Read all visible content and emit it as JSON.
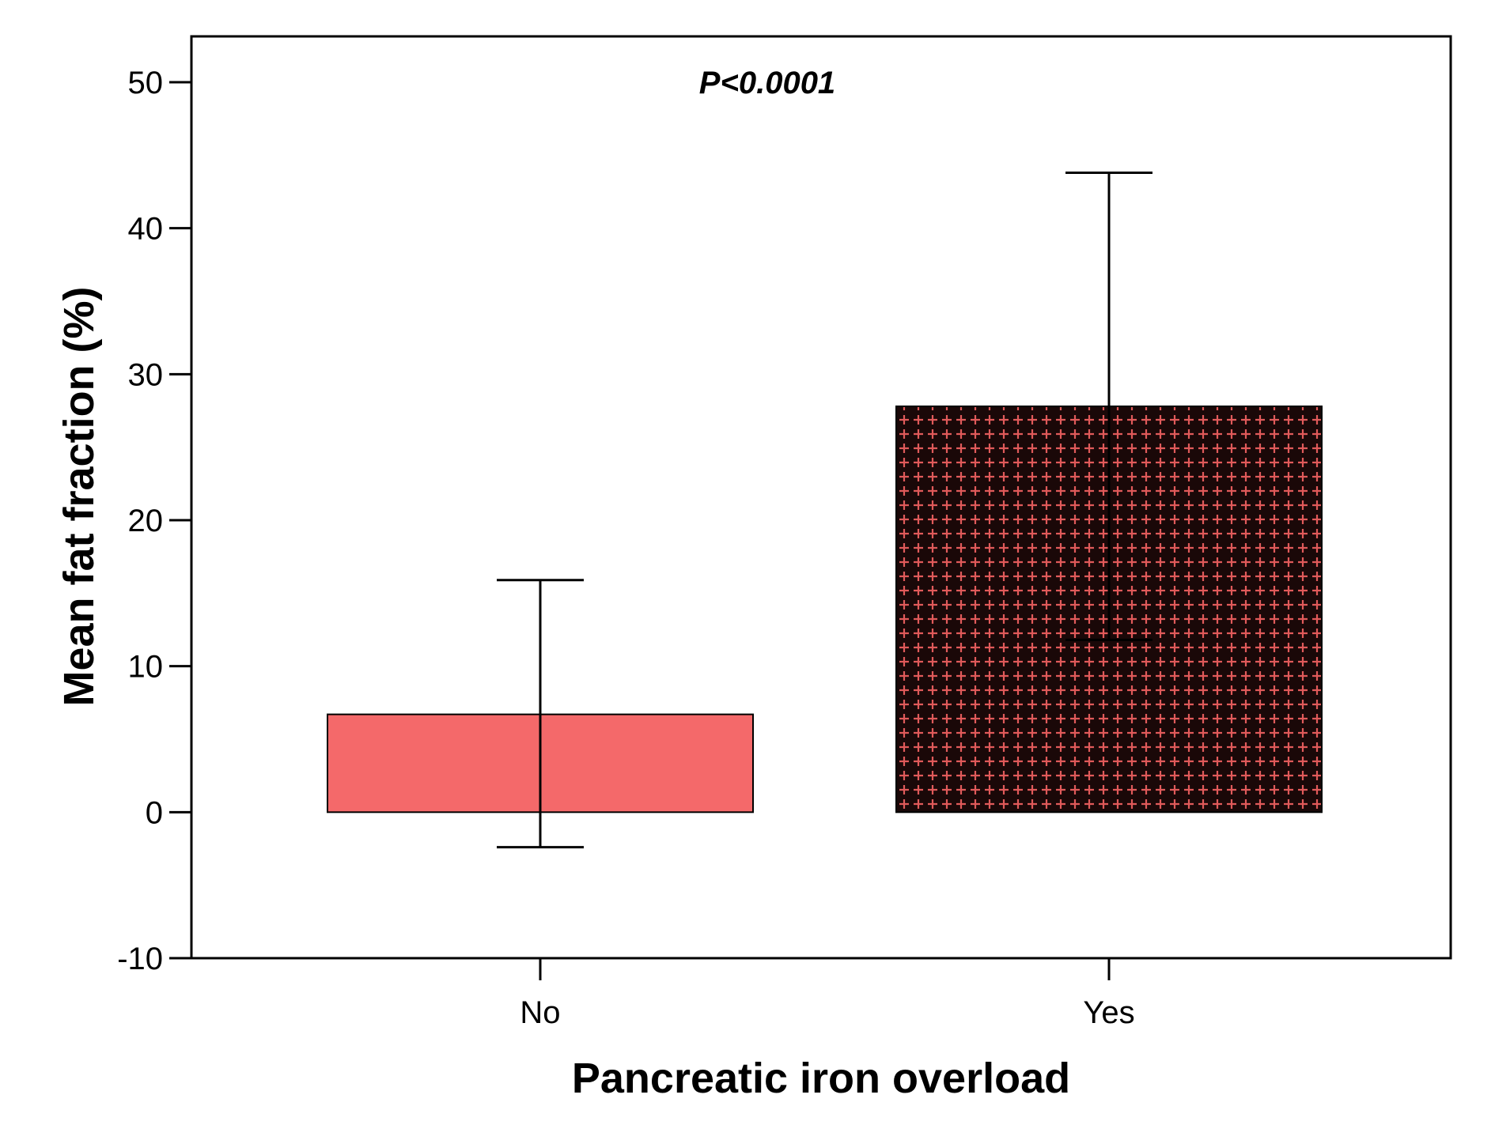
{
  "chart_data": {
    "type": "bar",
    "title": "",
    "xlabel": "Pancreatic iron overload",
    "ylabel": "Mean fat fraction (%)",
    "categories": [
      "No",
      "Yes"
    ],
    "values": [
      6.7,
      27.8
    ],
    "error_low": [
      -2.4,
      11.8
    ],
    "error_high": [
      15.9,
      43.8
    ],
    "ylim": [
      -10,
      50
    ],
    "yticks": [
      -10,
      0,
      10,
      20,
      30,
      40,
      50
    ],
    "ytick_labels": [
      "-10",
      "0",
      "10",
      "20",
      "30",
      "40",
      "50"
    ],
    "annotation": "P<0.0001",
    "grid": false,
    "bar_styles": [
      {
        "category": "No",
        "fill": "solid",
        "color": "#f4696a"
      },
      {
        "category": "Yes",
        "fill": "cross-hatch",
        "color": "#1a0808",
        "pattern_color": "#e05a5a"
      }
    ]
  }
}
